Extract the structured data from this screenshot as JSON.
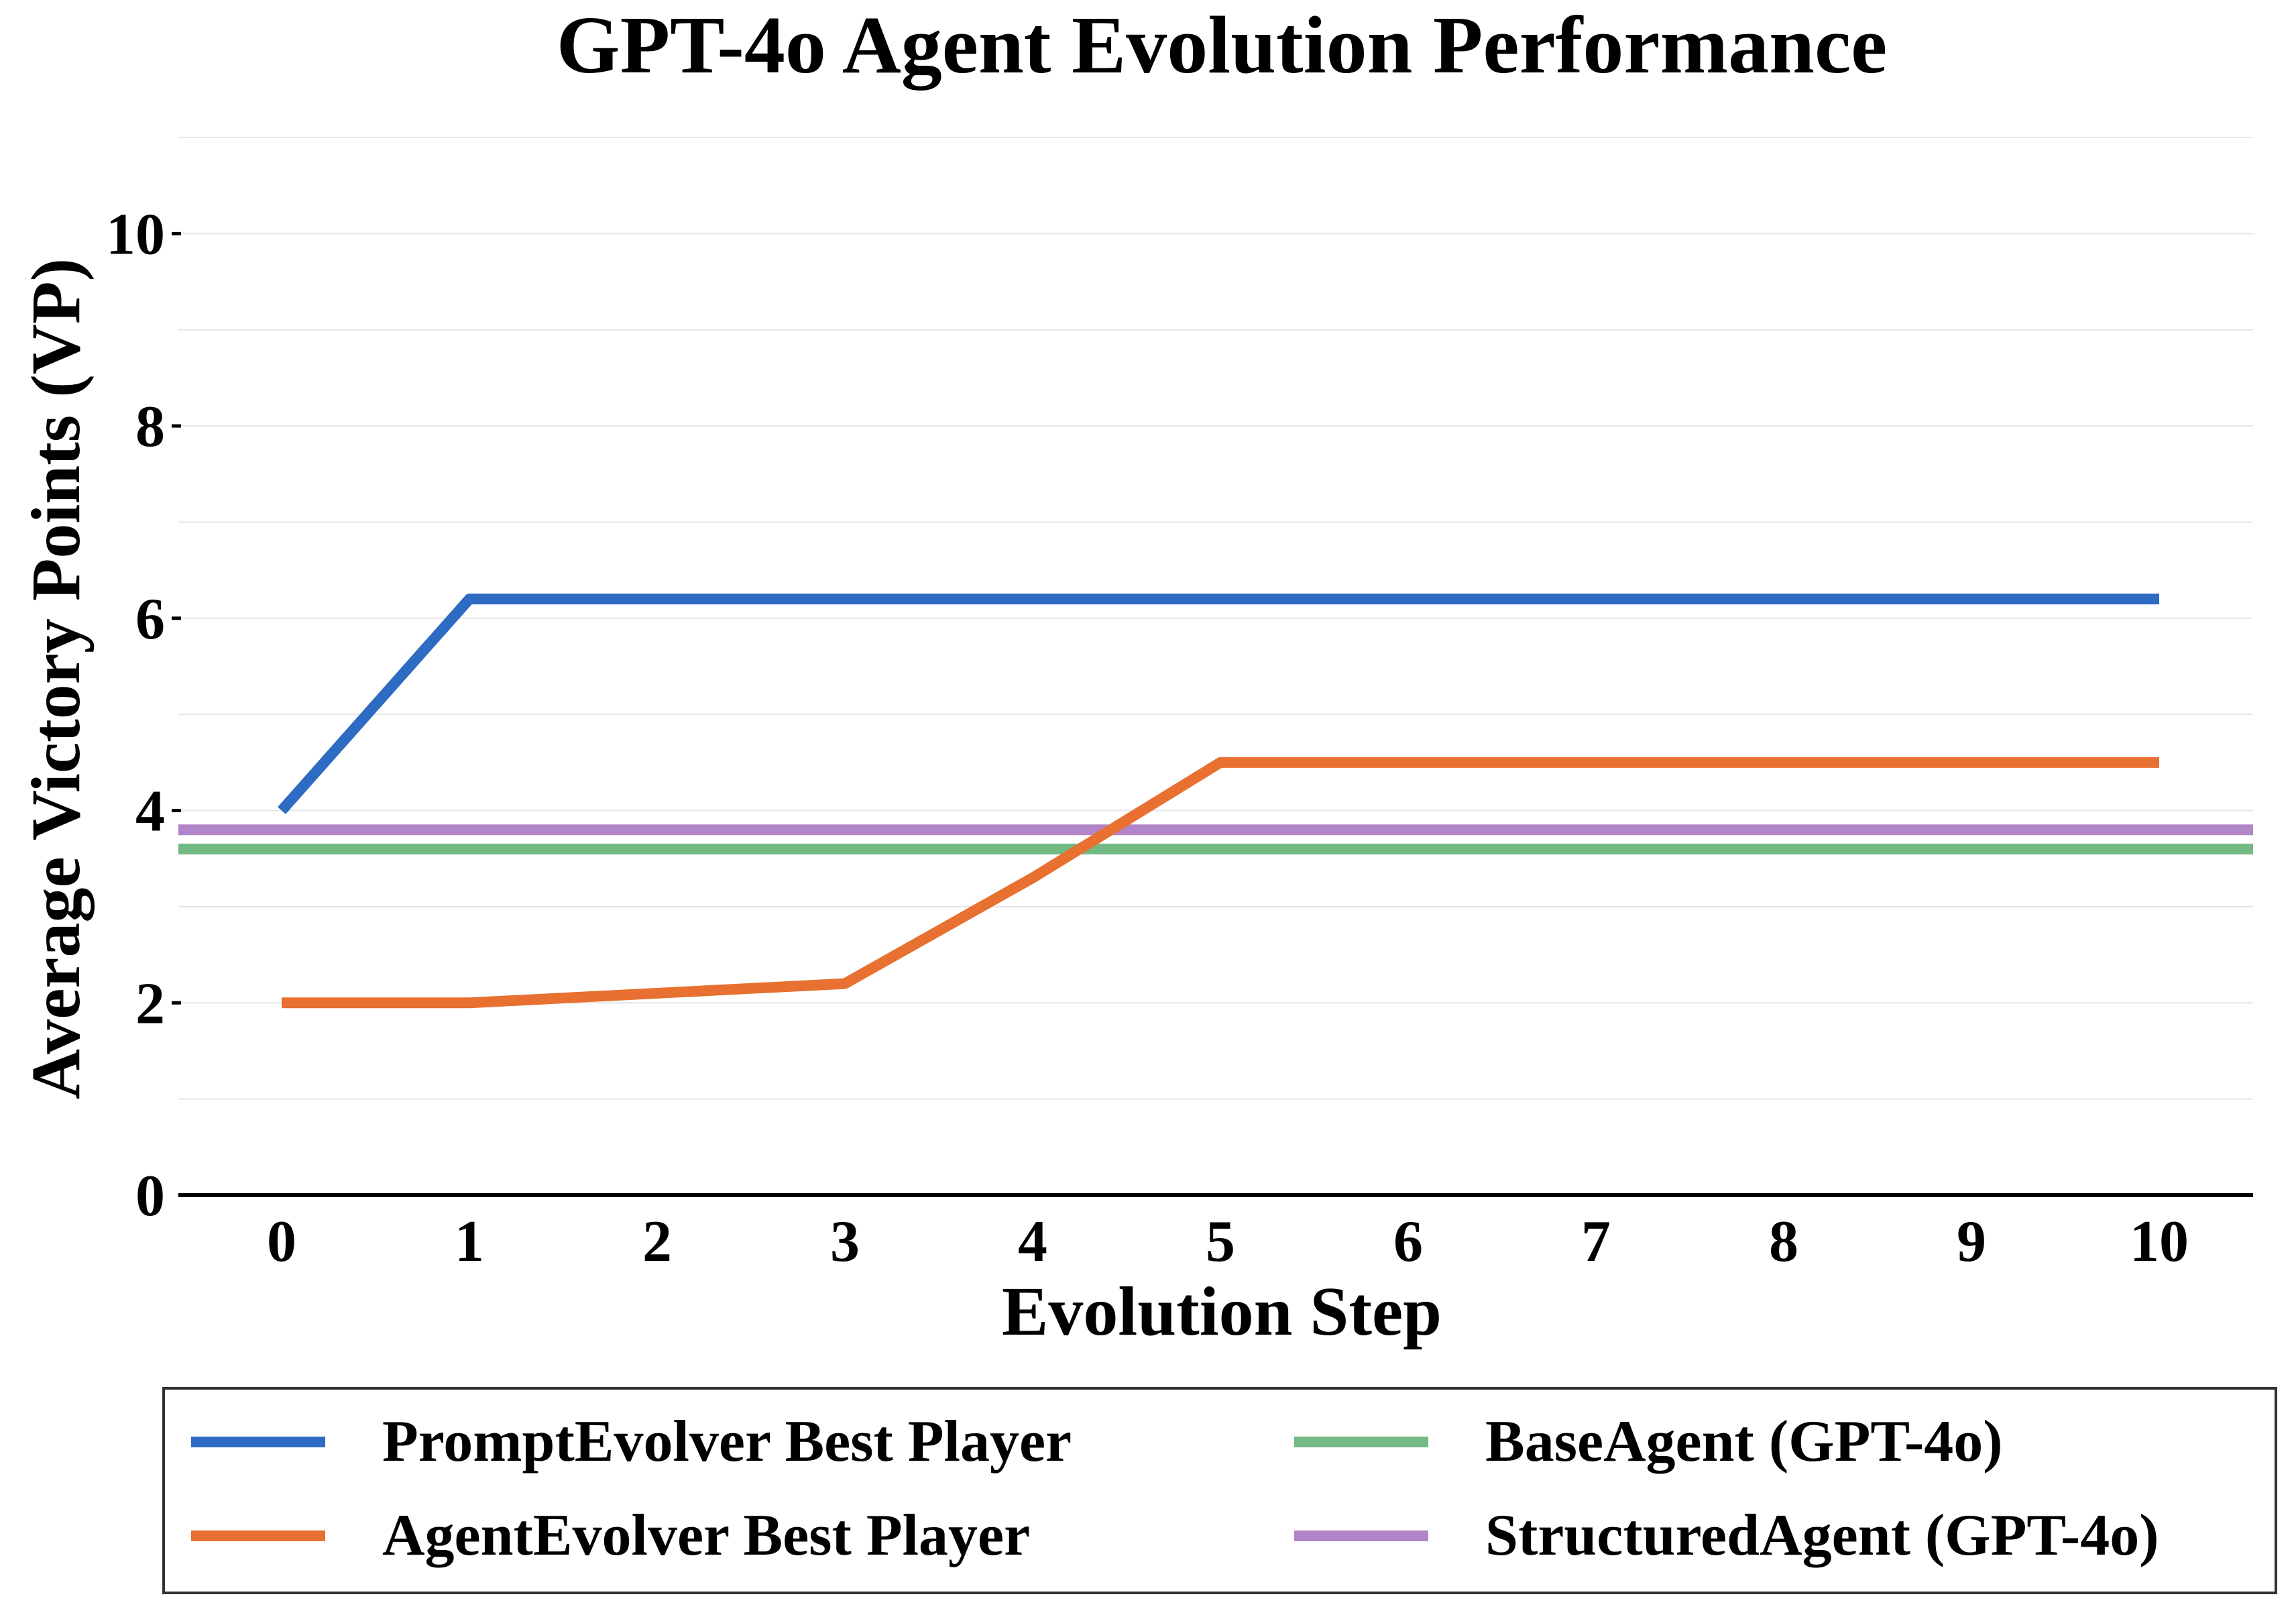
{
  "chart_data": {
    "type": "line",
    "title": "GPT-4o Agent Evolution Performance",
    "xlabel": "Evolution Step",
    "ylabel": "Average Victory Points (VP)",
    "x": [
      0,
      1,
      2,
      3,
      4,
      5,
      6,
      7,
      8,
      9,
      10
    ],
    "xlim": [
      -0.55,
      10.5
    ],
    "ylim": [
      0,
      11
    ],
    "x_ticks": [
      "0",
      "1",
      "2",
      "3",
      "4",
      "5",
      "6",
      "7",
      "8",
      "9",
      "10"
    ],
    "y_ticks": [
      0,
      2,
      4,
      6,
      8,
      10
    ],
    "y_tick_labels": [
      "0",
      "2",
      "4",
      "6",
      "8",
      "10"
    ],
    "grid": true,
    "legend_position": "bottom",
    "series": [
      {
        "name": "PromptEvolver Best Player",
        "color": "#2e6bc2",
        "kind": "line",
        "values": [
          4.0,
          6.2,
          6.2,
          6.2,
          6.2,
          6.2,
          6.2,
          6.2,
          6.2,
          6.2,
          6.2
        ]
      },
      {
        "name": "AgentEvolver Best Player",
        "color": "#e87030",
        "kind": "line",
        "values": [
          2.0,
          2.0,
          2.1,
          2.2,
          3.3,
          4.5,
          4.5,
          4.5,
          4.5,
          4.5,
          4.5
        ]
      },
      {
        "name": "BaseAgent (GPT-4o)",
        "color": "#72b984",
        "kind": "hline",
        "value": 3.6
      },
      {
        "name": "StructuredAgent (GPT-4o)",
        "color": "#b185c8",
        "kind": "hline",
        "value": 3.8
      }
    ]
  }
}
